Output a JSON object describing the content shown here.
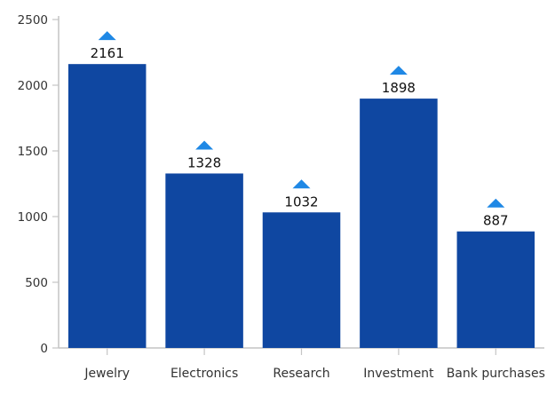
{
  "chart_data": {
    "type": "bar",
    "categories": [
      "Jewelry",
      "Electronics",
      "Research",
      "Investment",
      "Bank purchases"
    ],
    "values": [
      2161,
      1328,
      1032,
      1898,
      887
    ],
    "data_labels": [
      "2161",
      "1328",
      "1032",
      "1898",
      "887"
    ],
    "y_ticks": [
      "0",
      "500",
      "1000",
      "1500",
      "2000",
      "2500"
    ],
    "ylim": [
      0,
      2500
    ],
    "grid": false,
    "legend": "none",
    "annotations": "triangle-up marker above each bar label",
    "colors": {
      "bar": "#0f47a1",
      "marker": "#1f88e5",
      "axis": "#c4c4c4"
    }
  }
}
